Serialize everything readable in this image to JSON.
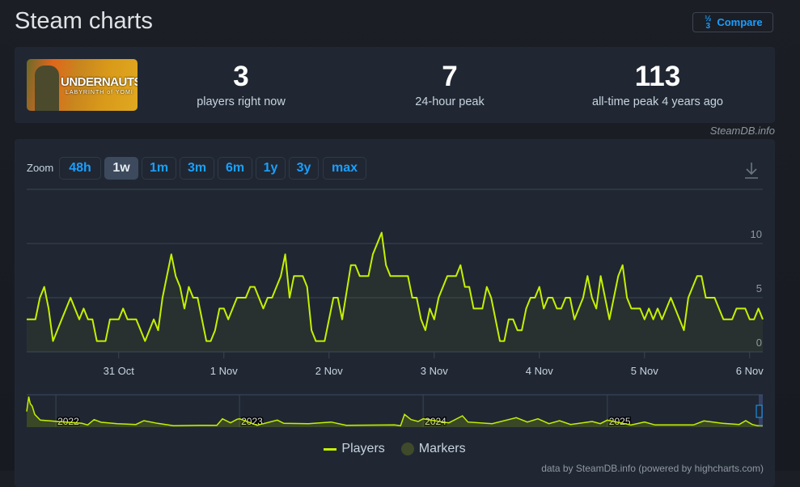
{
  "header": {
    "title": "Steam charts",
    "compare_label": "Compare",
    "compare_icon": "one-two-three-icon"
  },
  "game": {
    "name": "UNDERNAUTS",
    "subtitle": "LABYRINTH of YOMI"
  },
  "stats": [
    {
      "value": "3",
      "label": "players right now"
    },
    {
      "value": "7",
      "label": "24-hour peak"
    },
    {
      "value": "113",
      "label": "all-time peak 4 years ago"
    }
  ],
  "credit": "SteamDB.info",
  "zoom": {
    "label": "Zoom",
    "options": [
      "48h",
      "1w",
      "1m",
      "3m",
      "6m",
      "1y",
      "3y",
      "max"
    ],
    "active": "1w"
  },
  "legend": {
    "players": "Players",
    "markers": "Markers"
  },
  "footer": "data by SteamDB.info (powered by highcharts.com)",
  "colors": {
    "line": "#c6f000",
    "accent": "#1a9fff",
    "markers": "#3f4a2a"
  },
  "chart_data": {
    "type": "line",
    "xlim": [
      "30 Oct 03:00",
      "6 Nov 03:00"
    ],
    "ylim": [
      0,
      15
    ],
    "yticks": [
      "0",
      "5",
      "10"
    ],
    "xticks": [
      "31 Oct",
      "1 Nov",
      "2 Nov",
      "3 Nov",
      "4 Nov",
      "5 Nov",
      "6 Nov"
    ],
    "grid": true,
    "legend_placement": "bottom",
    "series": [
      {
        "name": "Players",
        "points": [
          [
            "30 Oct 03:00",
            3
          ],
          [
            "30 Oct 05:00",
            3
          ],
          [
            "30 Oct 06:00",
            5
          ],
          [
            "30 Oct 07:00",
            6
          ],
          [
            "30 Oct 08:00",
            4
          ],
          [
            "30 Oct 09:00",
            1
          ],
          [
            "30 Oct 11:00",
            3
          ],
          [
            "30 Oct 13:00",
            5
          ],
          [
            "30 Oct 15:00",
            3
          ],
          [
            "30 Oct 16:00",
            4
          ],
          [
            "30 Oct 17:00",
            3
          ],
          [
            "30 Oct 18:00",
            3
          ],
          [
            "30 Oct 19:00",
            1
          ],
          [
            "30 Oct 21:00",
            1
          ],
          [
            "30 Oct 22:00",
            3
          ],
          [
            "31 Oct 00:00",
            3
          ],
          [
            "31 Oct 01:00",
            4
          ],
          [
            "31 Oct 02:00",
            3
          ],
          [
            "31 Oct 04:00",
            3
          ],
          [
            "31 Oct 06:00",
            1
          ],
          [
            "31 Oct 08:00",
            3
          ],
          [
            "31 Oct 09:00",
            2
          ],
          [
            "31 Oct 10:00",
            5
          ],
          [
            "31 Oct 12:00",
            9
          ],
          [
            "31 Oct 13:00",
            7
          ],
          [
            "31 Oct 14:00",
            6
          ],
          [
            "31 Oct 15:00",
            4
          ],
          [
            "31 Oct 16:00",
            6
          ],
          [
            "31 Oct 17:00",
            5
          ],
          [
            "31 Oct 18:00",
            5
          ],
          [
            "31 Oct 20:00",
            1
          ],
          [
            "31 Oct 21:00",
            1
          ],
          [
            "31 Oct 22:00",
            2
          ],
          [
            "31 Oct 23:00",
            4
          ],
          [
            "1 Nov 00:00",
            4
          ],
          [
            "1 Nov 01:00",
            3
          ],
          [
            "1 Nov 03:00",
            5
          ],
          [
            "1 Nov 05:00",
            5
          ],
          [
            "1 Nov 06:00",
            6
          ],
          [
            "1 Nov 07:00",
            6
          ],
          [
            "1 Nov 09:00",
            4
          ],
          [
            "1 Nov 10:00",
            5
          ],
          [
            "1 Nov 11:00",
            5
          ],
          [
            "1 Nov 13:00",
            7
          ],
          [
            "1 Nov 14:00",
            9
          ],
          [
            "1 Nov 15:00",
            5
          ],
          [
            "1 Nov 16:00",
            7
          ],
          [
            "1 Nov 18:00",
            7
          ],
          [
            "1 Nov 19:00",
            6
          ],
          [
            "1 Nov 20:00",
            2
          ],
          [
            "1 Nov 21:00",
            1
          ],
          [
            "1 Nov 23:00",
            1
          ],
          [
            "2 Nov 01:00",
            5
          ],
          [
            "2 Nov 02:00",
            5
          ],
          [
            "2 Nov 03:00",
            3
          ],
          [
            "2 Nov 05:00",
            8
          ],
          [
            "2 Nov 06:00",
            8
          ],
          [
            "2 Nov 07:00",
            7
          ],
          [
            "2 Nov 09:00",
            7
          ],
          [
            "2 Nov 10:00",
            9
          ],
          [
            "2 Nov 12:00",
            11
          ],
          [
            "2 Nov 13:00",
            8
          ],
          [
            "2 Nov 14:00",
            7
          ],
          [
            "2 Nov 18:00",
            7
          ],
          [
            "2 Nov 19:00",
            5
          ],
          [
            "2 Nov 20:00",
            5
          ],
          [
            "2 Nov 21:00",
            3
          ],
          [
            "2 Nov 22:00",
            2
          ],
          [
            "2 Nov 23:00",
            4
          ],
          [
            "3 Nov 00:00",
            3
          ],
          [
            "3 Nov 01:00",
            5
          ],
          [
            "3 Nov 03:00",
            7
          ],
          [
            "3 Nov 05:00",
            7
          ],
          [
            "3 Nov 06:00",
            8
          ],
          [
            "3 Nov 07:00",
            6
          ],
          [
            "3 Nov 08:00",
            6
          ],
          [
            "3 Nov 09:00",
            4
          ],
          [
            "3 Nov 11:00",
            4
          ],
          [
            "3 Nov 12:00",
            6
          ],
          [
            "3 Nov 13:00",
            5
          ],
          [
            "3 Nov 15:00",
            1
          ],
          [
            "3 Nov 16:00",
            1
          ],
          [
            "3 Nov 17:00",
            3
          ],
          [
            "3 Nov 18:00",
            3
          ],
          [
            "3 Nov 19:00",
            2
          ],
          [
            "3 Nov 20:00",
            2
          ],
          [
            "3 Nov 21:00",
            4
          ],
          [
            "3 Nov 22:00",
            5
          ],
          [
            "3 Nov 23:00",
            5
          ],
          [
            "4 Nov 00:00",
            6
          ],
          [
            "4 Nov 01:00",
            4
          ],
          [
            "4 Nov 02:00",
            5
          ],
          [
            "4 Nov 03:00",
            5
          ],
          [
            "4 Nov 04:00",
            4
          ],
          [
            "4 Nov 05:00",
            4
          ],
          [
            "4 Nov 06:00",
            5
          ],
          [
            "4 Nov 07:00",
            5
          ],
          [
            "4 Nov 08:00",
            3
          ],
          [
            "4 Nov 10:00",
            5
          ],
          [
            "4 Nov 11:00",
            7
          ],
          [
            "4 Nov 12:00",
            5
          ],
          [
            "4 Nov 13:00",
            4
          ],
          [
            "4 Nov 14:00",
            7
          ],
          [
            "4 Nov 16:00",
            3
          ],
          [
            "4 Nov 18:00",
            7
          ],
          [
            "4 Nov 19:00",
            8
          ],
          [
            "4 Nov 20:00",
            5
          ],
          [
            "4 Nov 21:00",
            4
          ],
          [
            "4 Nov 23:00",
            4
          ],
          [
            "5 Nov 00:00",
            3
          ],
          [
            "5 Nov 01:00",
            4
          ],
          [
            "5 Nov 02:00",
            3
          ],
          [
            "5 Nov 03:00",
            4
          ],
          [
            "5 Nov 04:00",
            3
          ],
          [
            "5 Nov 06:00",
            5
          ],
          [
            "5 Nov 09:00",
            2
          ],
          [
            "5 Nov 10:00",
            5
          ],
          [
            "5 Nov 12:00",
            7
          ],
          [
            "5 Nov 13:00",
            7
          ],
          [
            "5 Nov 14:00",
            5
          ],
          [
            "5 Nov 16:00",
            5
          ],
          [
            "5 Nov 18:00",
            3
          ],
          [
            "5 Nov 20:00",
            3
          ],
          [
            "5 Nov 21:00",
            4
          ],
          [
            "5 Nov 23:00",
            4
          ],
          [
            "6 Nov 00:00",
            3
          ],
          [
            "6 Nov 01:00",
            3
          ],
          [
            "6 Nov 02:00",
            4
          ],
          [
            "6 Nov 03:00",
            3
          ]
        ]
      }
    ],
    "navigator": {
      "xticks": [
        "2022",
        "2023",
        "2024",
        "2025"
      ],
      "xlim": [
        "2021-11-04",
        "2025-11-06"
      ],
      "ylim": [
        0,
        120
      ],
      "points": [
        [
          "2021-11-04",
          58
        ],
        [
          "2021-11-08",
          113
        ],
        [
          "2021-11-11",
          87
        ],
        [
          "2021-11-15",
          78
        ],
        [
          "2021-11-20",
          47
        ],
        [
          "2021-12-01",
          26
        ],
        [
          "2022-01-05",
          21
        ],
        [
          "2022-02-22",
          14
        ],
        [
          "2022-03-05",
          8
        ],
        [
          "2022-03-18",
          28
        ],
        [
          "2022-04-01",
          18
        ],
        [
          "2022-05-03",
          13
        ],
        [
          "2022-06-09",
          10
        ],
        [
          "2022-06-25",
          24
        ],
        [
          "2022-07-22",
          14
        ],
        [
          "2022-08-23",
          5
        ],
        [
          "2022-10-11",
          7
        ],
        [
          "2022-11-17",
          7
        ],
        [
          "2022-11-28",
          31
        ],
        [
          "2022-12-14",
          16
        ],
        [
          "2022-12-27",
          29
        ],
        [
          "2023-01-01",
          31
        ],
        [
          "2023-02-05",
          7
        ],
        [
          "2023-03-17",
          26
        ],
        [
          "2023-03-30",
          14
        ],
        [
          "2023-05-18",
          13
        ],
        [
          "2023-07-02",
          19
        ],
        [
          "2023-08-01",
          7
        ],
        [
          "2023-11-05",
          8
        ],
        [
          "2023-11-17",
          5
        ],
        [
          "2023-11-25",
          47
        ],
        [
          "2023-12-08",
          28
        ],
        [
          "2023-12-22",
          21
        ],
        [
          "2024-01-01",
          31
        ],
        [
          "2024-02-21",
          16
        ],
        [
          "2024-03-19",
          42
        ],
        [
          "2024-03-30",
          19
        ],
        [
          "2024-05-17",
          13
        ],
        [
          "2024-07-04",
          35
        ],
        [
          "2024-07-26",
          19
        ],
        [
          "2024-08-16",
          31
        ],
        [
          "2024-09-07",
          13
        ],
        [
          "2024-09-28",
          24
        ],
        [
          "2024-10-20",
          10
        ],
        [
          "2024-12-02",
          21
        ],
        [
          "2024-12-18",
          13
        ],
        [
          "2025-01-01",
          26
        ],
        [
          "2025-02-17",
          8
        ],
        [
          "2025-03-16",
          19
        ],
        [
          "2025-04-06",
          8
        ],
        [
          "2025-06-21",
          8
        ],
        [
          "2025-07-12",
          23
        ],
        [
          "2025-08-18",
          14
        ],
        [
          "2025-09-20",
          10
        ],
        [
          "2025-10-03",
          24
        ],
        [
          "2025-10-16",
          10
        ],
        [
          "2025-10-27",
          5
        ],
        [
          "2025-11-06",
          5
        ]
      ]
    }
  }
}
